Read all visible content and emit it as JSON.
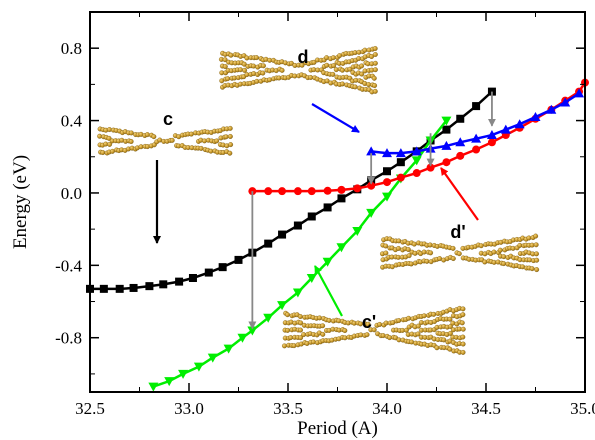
{
  "chart_data": {
    "type": "line",
    "title": "",
    "xlabel": "Period (A)",
    "ylabel": "Energy (eV)",
    "xlim": [
      32.5,
      35.0
    ],
    "ylim": [
      -1.1,
      1.0
    ],
    "x_ticks": [
      32.5,
      33.0,
      33.5,
      34.0,
      34.5,
      35.0
    ],
    "x_tick_labels": [
      "32.5",
      "33.0",
      "33.5",
      "34.0",
      "34.5",
      "35.0"
    ],
    "y_ticks": [
      -0.8,
      -0.4,
      0.0,
      0.4,
      0.8
    ],
    "y_tick_labels": [
      "-0.8",
      "-0.4",
      "0.0",
      "0.4",
      "0.8"
    ],
    "grid": false,
    "legend": "none",
    "series": [
      {
        "id": "c",
        "color": "#000000",
        "marker": "square",
        "x": [
          32.5,
          32.57,
          32.65,
          32.72,
          32.8,
          32.87,
          32.95,
          33.02,
          33.1,
          33.17,
          33.25,
          33.32,
          33.4,
          33.47,
          33.55,
          33.62,
          33.7,
          33.77,
          33.85,
          33.92,
          34.0,
          34.07,
          34.15,
          34.22,
          34.3,
          34.37,
          34.45,
          34.53
        ],
        "y": [
          -0.53,
          -0.53,
          -0.53,
          -0.525,
          -0.515,
          -0.505,
          -0.49,
          -0.47,
          -0.44,
          -0.41,
          -0.37,
          -0.33,
          -0.28,
          -0.23,
          -0.18,
          -0.13,
          -0.08,
          -0.03,
          0.02,
          0.07,
          0.12,
          0.17,
          0.23,
          0.29,
          0.35,
          0.41,
          0.48,
          0.56
        ]
      },
      {
        "id": "c'",
        "color": "#00ee00",
        "marker": "triangle-down",
        "x": [
          32.82,
          32.9,
          32.97,
          33.05,
          33.12,
          33.2,
          33.27,
          33.32,
          33.4,
          33.47,
          33.55,
          33.62,
          33.7,
          33.77,
          33.85,
          33.92,
          34.0,
          34.07,
          34.15,
          34.22,
          34.3
        ],
        "y": [
          -1.07,
          -1.04,
          -1.0,
          -0.96,
          -0.91,
          -0.86,
          -0.8,
          -0.76,
          -0.69,
          -0.62,
          -0.55,
          -0.47,
          -0.38,
          -0.3,
          -0.21,
          -0.11,
          -0.02,
          0.08,
          0.18,
          0.29,
          0.4
        ]
      },
      {
        "id": "d'",
        "color": "#ff0000",
        "marker": "circle",
        "x": [
          33.32,
          33.4,
          33.47,
          33.55,
          33.62,
          33.7,
          33.77,
          33.85,
          33.92,
          34.0,
          34.07,
          34.15,
          34.22,
          34.3,
          34.37,
          34.45,
          34.53,
          34.6,
          34.67,
          34.75,
          34.83,
          34.9,
          34.97,
          35.0
        ],
        "y": [
          0.01,
          0.01,
          0.01,
          0.01,
          0.01,
          0.012,
          0.017,
          0.025,
          0.04,
          0.06,
          0.085,
          0.11,
          0.14,
          0.17,
          0.205,
          0.24,
          0.28,
          0.32,
          0.36,
          0.41,
          0.46,
          0.51,
          0.56,
          0.61
        ]
      },
      {
        "id": "d",
        "color": "#0000ff",
        "marker": "triangle-up",
        "x": [
          33.92,
          34.0,
          34.07,
          34.15,
          34.22,
          34.3,
          34.37,
          34.45,
          34.53,
          34.6,
          34.67,
          34.75,
          34.83,
          34.9,
          34.97
        ],
        "y": [
          0.23,
          0.22,
          0.22,
          0.23,
          0.245,
          0.26,
          0.28,
          0.3,
          0.32,
          0.35,
          0.38,
          0.42,
          0.46,
          0.5,
          0.55
        ]
      }
    ],
    "annotations": [
      {
        "text": "c",
        "color": "#000000"
      },
      {
        "text": "c'",
        "color": "#00ee00"
      },
      {
        "text": "d",
        "color": "#0000ff"
      },
      {
        "text": "d'",
        "color": "#ff0000"
      }
    ],
    "transitions": [
      {
        "x": 33.32,
        "y_from": 0.01,
        "y_to": -0.76
      },
      {
        "x": 33.92,
        "y_from": 0.22,
        "y_to": 0.04
      },
      {
        "x": 34.22,
        "y_from": 0.33,
        "y_to": 0.14
      },
      {
        "x": 34.53,
        "y_from": 0.56,
        "y_to": 0.36
      }
    ]
  }
}
